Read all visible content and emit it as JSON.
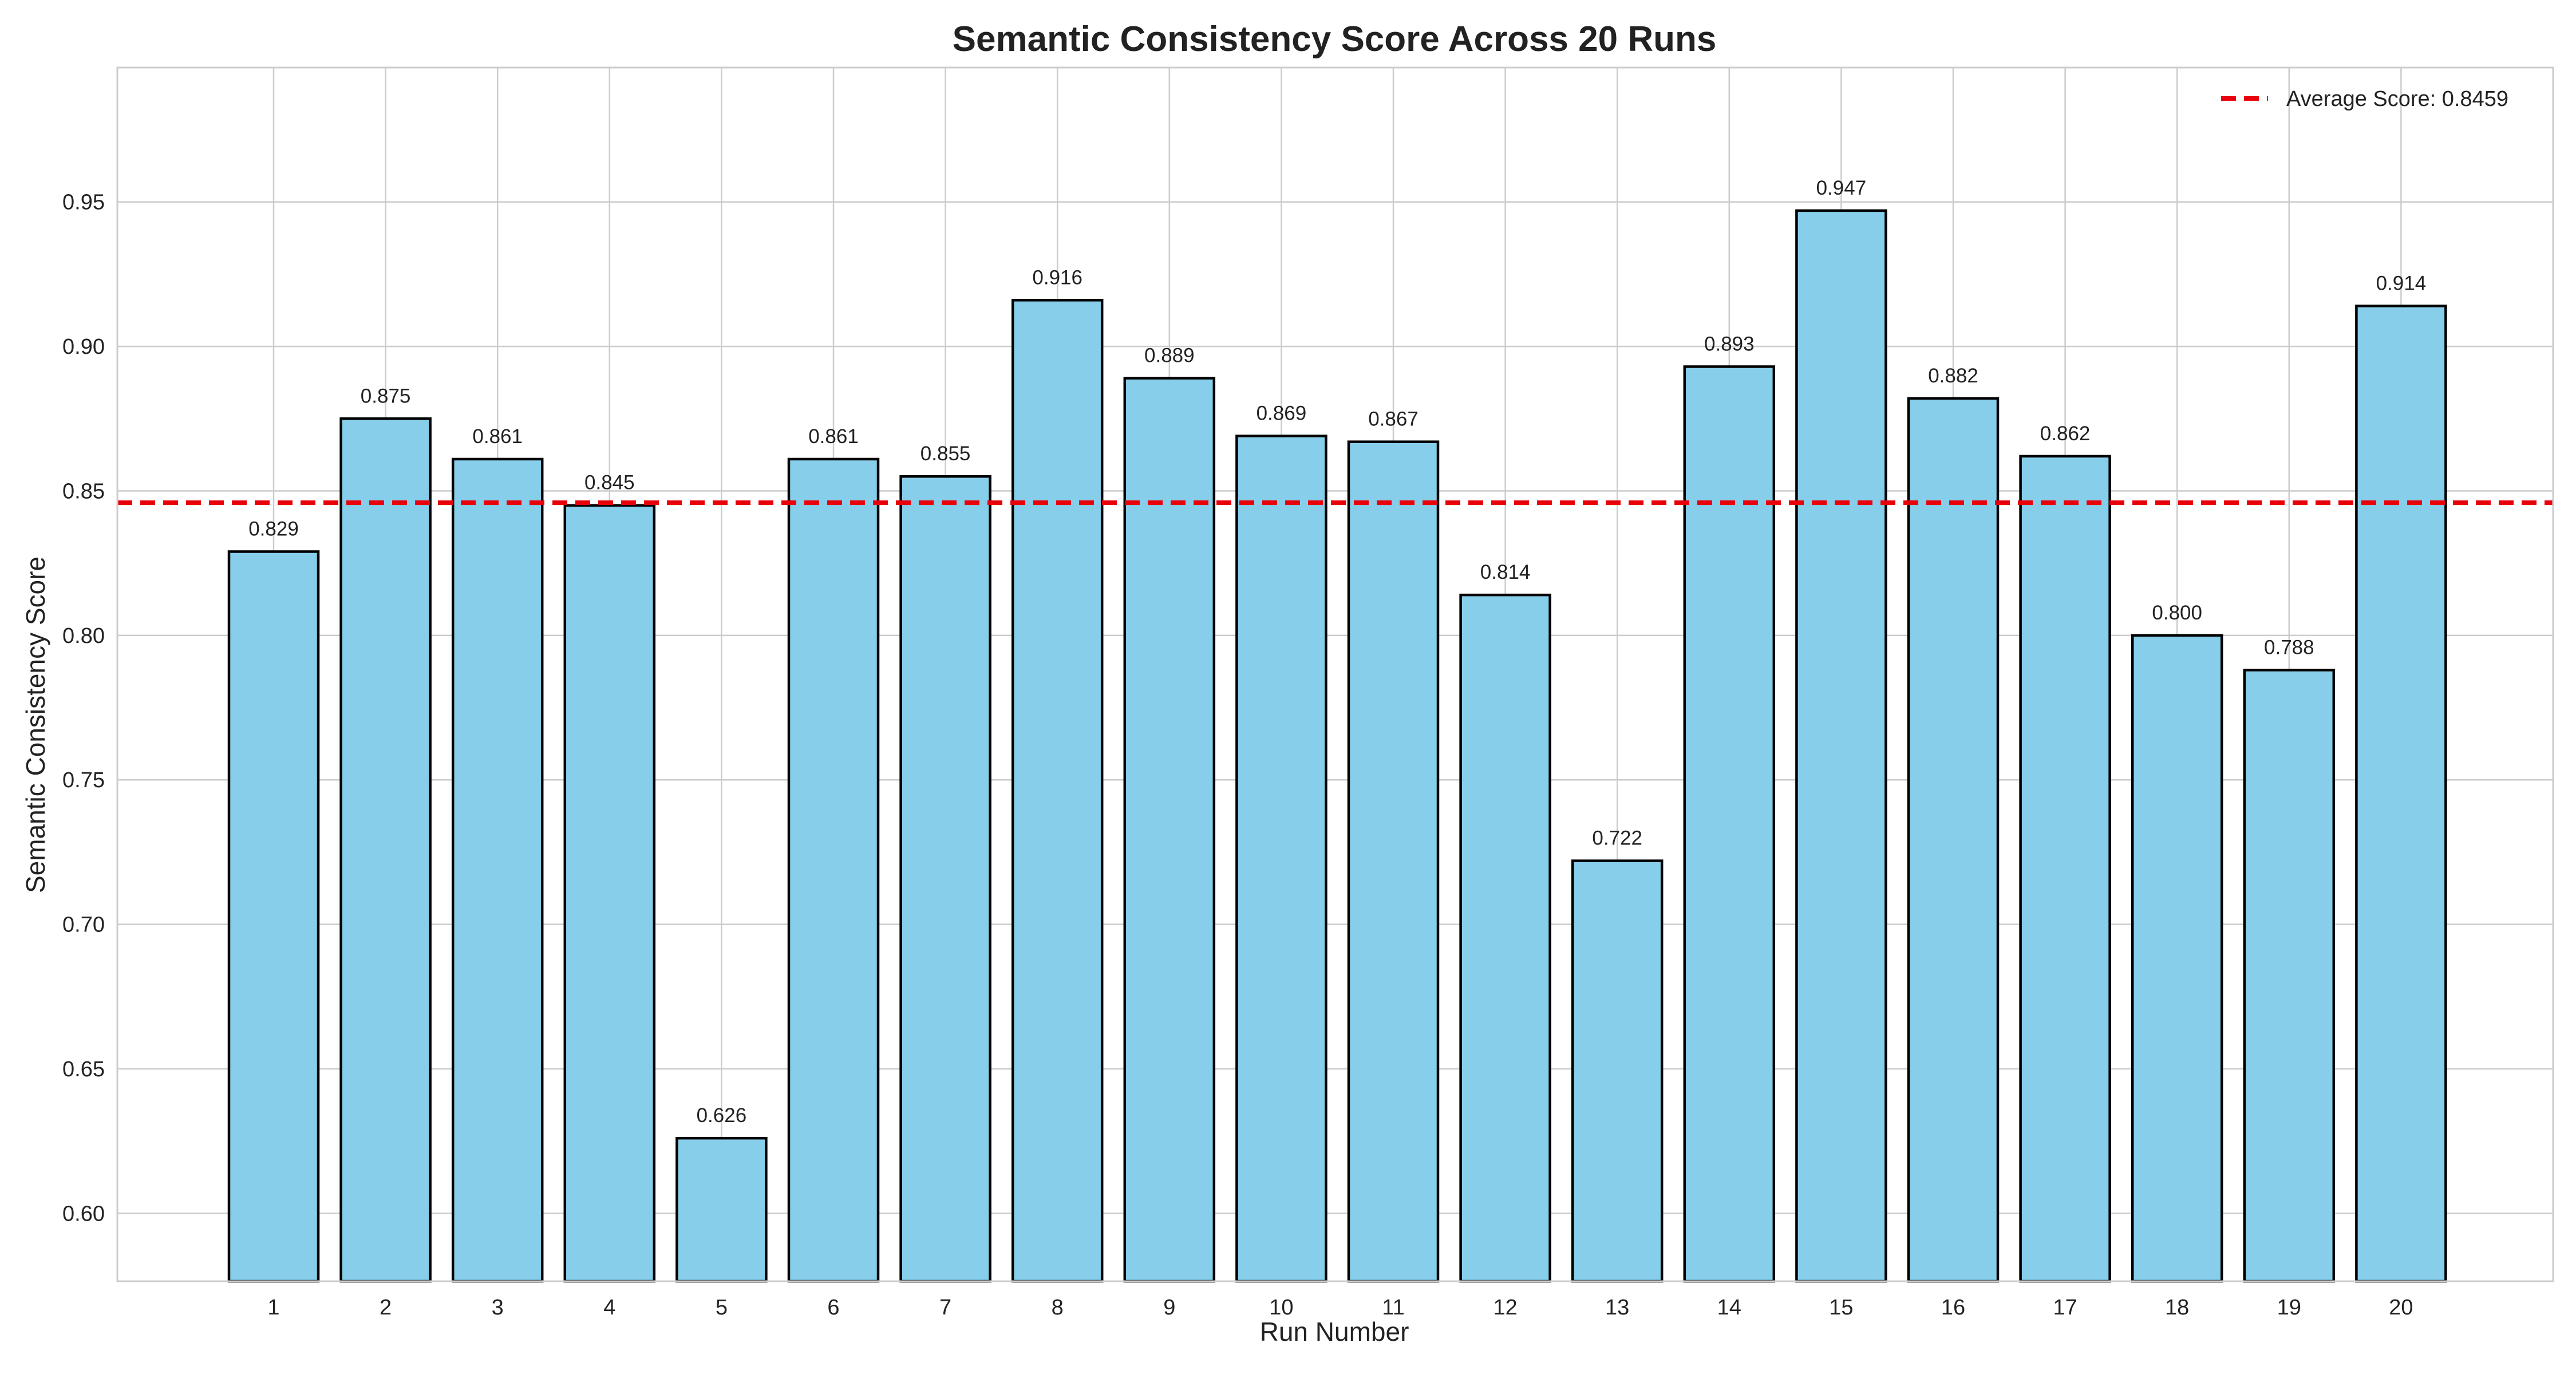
{
  "chart_data": {
    "type": "bar",
    "title": "Semantic Consistency Score Across 20 Runs",
    "xlabel": "Run Number",
    "ylabel": "Semantic Consistency Score",
    "categories": [
      "1",
      "2",
      "3",
      "4",
      "5",
      "6",
      "7",
      "8",
      "9",
      "10",
      "11",
      "12",
      "13",
      "14",
      "15",
      "16",
      "17",
      "18",
      "19",
      "20"
    ],
    "values": [
      0.829,
      0.875,
      0.861,
      0.845,
      0.626,
      0.861,
      0.855,
      0.916,
      0.889,
      0.869,
      0.867,
      0.814,
      0.722,
      0.893,
      0.947,
      0.882,
      0.862,
      0.8,
      0.788,
      0.914
    ],
    "value_labels": [
      "0.829",
      "0.875",
      "0.861",
      "0.845",
      "0.626",
      "0.861",
      "0.855",
      "0.916",
      "0.889",
      "0.869",
      "0.867",
      "0.814",
      "0.722",
      "0.893",
      "0.947",
      "0.882",
      "0.862",
      "0.800",
      "0.788",
      "0.914"
    ],
    "ylim": [
      0.5765,
      0.9965
    ],
    "yticks": [
      0.6,
      0.65,
      0.7,
      0.75,
      0.8,
      0.85,
      0.9,
      0.95
    ],
    "ytick_labels": [
      "0.60",
      "0.65",
      "0.70",
      "0.75",
      "0.80",
      "0.85",
      "0.90",
      "0.95"
    ],
    "grid": true,
    "reference_line": {
      "value": 0.8459,
      "label": "Average Score: 0.8459",
      "color": "#e8000b",
      "style": "dashed"
    },
    "legend_position": "top-right",
    "bar_color": "#87ceeb",
    "bar_edge_color": "#000000"
  }
}
